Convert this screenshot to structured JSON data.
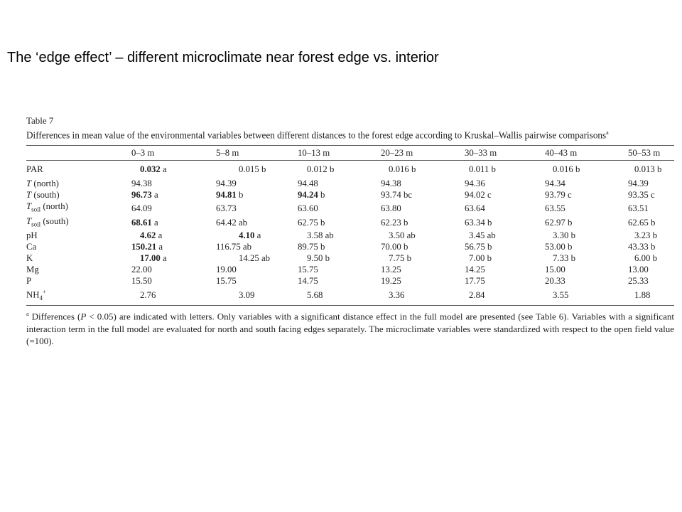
{
  "slide": {
    "title": "The ‘edge effect’ – different microclimate near forest edge vs. interior"
  },
  "table": {
    "label": "Table 7",
    "caption": "Differences in mean value of the environmental variables between different distances to the forest edge according to Kruskal–Wallis pairwise comparisons",
    "caption_sup": "a",
    "columns": [
      "0–3 m",
      "5–8 m",
      "10–13 m",
      "20–23 m",
      "30–33 m",
      "40–43 m",
      "50–53 m"
    ],
    "rows": [
      {
        "var": "PAR",
        "cells": [
          {
            "v": "0.032",
            "l": "a",
            "b": true
          },
          {
            "v": "0.015",
            "l": "b"
          },
          {
            "v": "0.012",
            "l": "b"
          },
          {
            "v": "0.016",
            "l": "b"
          },
          {
            "v": "0.011",
            "l": "b"
          },
          {
            "v": "0.016",
            "l": "b"
          },
          {
            "v": "0.013",
            "l": "b"
          }
        ],
        "align": "right"
      },
      {
        "var": "T",
        "var_italic": true,
        "var_suffix": " (north)",
        "cells": [
          {
            "v": "94.38"
          },
          {
            "v": "94.39"
          },
          {
            "v": "94.48"
          },
          {
            "v": "94.38"
          },
          {
            "v": "94.36"
          },
          {
            "v": "94.34"
          },
          {
            "v": "94.39"
          }
        ]
      },
      {
        "var": "T",
        "var_italic": true,
        "var_suffix": " (south)",
        "cells": [
          {
            "v": "96.73",
            "l": "a",
            "b": true
          },
          {
            "v": "94.81",
            "l": "b",
            "b": true
          },
          {
            "v": "94.24",
            "l": "b",
            "b": true
          },
          {
            "v": "93.74",
            "l": "bc"
          },
          {
            "v": "94.02",
            "l": "c"
          },
          {
            "v": "93.79",
            "l": "c"
          },
          {
            "v": "93.35",
            "l": "c"
          }
        ]
      },
      {
        "var": "T",
        "var_italic": true,
        "var_sub": "soil",
        "var_suffix": " (north)",
        "cells": [
          {
            "v": "64.09"
          },
          {
            "v": "63.73"
          },
          {
            "v": "63.60"
          },
          {
            "v": "63.80"
          },
          {
            "v": "63.64"
          },
          {
            "v": "63.55"
          },
          {
            "v": "63.51"
          }
        ]
      },
      {
        "var": "T",
        "var_italic": true,
        "var_sub": "soil",
        "var_suffix": " (south)",
        "cells": [
          {
            "v": "68.61",
            "l": "a",
            "b": true
          },
          {
            "v": "64.42",
            "l": "ab"
          },
          {
            "v": "62.75",
            "l": "b"
          },
          {
            "v": "62.23",
            "l": "b"
          },
          {
            "v": "63.34",
            "l": "b"
          },
          {
            "v": "62.97",
            "l": "b"
          },
          {
            "v": "62.65",
            "l": "b"
          }
        ]
      },
      {
        "var": "pH",
        "cells": [
          {
            "v": "4.62",
            "l": "a",
            "b": true
          },
          {
            "v": "4.10",
            "l": "a",
            "b": true
          },
          {
            "v": "3.58",
            "l": "ab"
          },
          {
            "v": "3.50",
            "l": "ab"
          },
          {
            "v": "3.45",
            "l": "ab"
          },
          {
            "v": "3.30",
            "l": "b"
          },
          {
            "v": "3.23",
            "l": "b"
          }
        ],
        "align": "right"
      },
      {
        "var": "Ca",
        "cells": [
          {
            "v": "150.21",
            "l": "a",
            "b": true
          },
          {
            "v": "116.75",
            "l": "ab"
          },
          {
            "v": "89.75",
            "l": "b"
          },
          {
            "v": "70.00",
            "l": "b"
          },
          {
            "v": "56.75",
            "l": "b"
          },
          {
            "v": "53.00",
            "l": "b"
          },
          {
            "v": "43.33",
            "l": "b"
          }
        ]
      },
      {
        "var": "K",
        "cells": [
          {
            "v": "17.00",
            "l": "a",
            "b": true
          },
          {
            "v": "14.25",
            "l": "ab"
          },
          {
            "v": "9.50",
            "l": "b"
          },
          {
            "v": "7.75",
            "l": "b"
          },
          {
            "v": "7.00",
            "l": "b"
          },
          {
            "v": "7.33",
            "l": "b"
          },
          {
            "v": "6.00",
            "l": "b"
          }
        ],
        "align": "right"
      },
      {
        "var": "Mg",
        "cells": [
          {
            "v": "22.00"
          },
          {
            "v": "19.00"
          },
          {
            "v": "15.75"
          },
          {
            "v": "13.25"
          },
          {
            "v": "14.25"
          },
          {
            "v": "15.00"
          },
          {
            "v": "13.00"
          }
        ]
      },
      {
        "var": "P",
        "cells": [
          {
            "v": "15.50"
          },
          {
            "v": "15.75"
          },
          {
            "v": "14.75"
          },
          {
            "v": "19.25"
          },
          {
            "v": "17.75"
          },
          {
            "v": "20.33"
          },
          {
            "v": "25.33"
          }
        ]
      },
      {
        "var": "NH",
        "var_sub": "4",
        "var_sup": "+",
        "cells": [
          {
            "v": "2.76"
          },
          {
            "v": "3.09"
          },
          {
            "v": "5.68"
          },
          {
            "v": "3.36"
          },
          {
            "v": "2.84"
          },
          {
            "v": "3.55"
          },
          {
            "v": "1.88"
          }
        ],
        "align": "right"
      }
    ],
    "footnote": {
      "sup": "a",
      "text_1": " Differences (",
      "p_symbol": "P",
      "text_2": " < 0.05) are indicated with letters. Only variables with a significant distance effect in the full model are presented (see Table 6). Variables with a significant interaction term in the full model are evaluated for north and south facing edges separately. The microclimate variables were standardized with respect to the open field value (=100)."
    }
  }
}
